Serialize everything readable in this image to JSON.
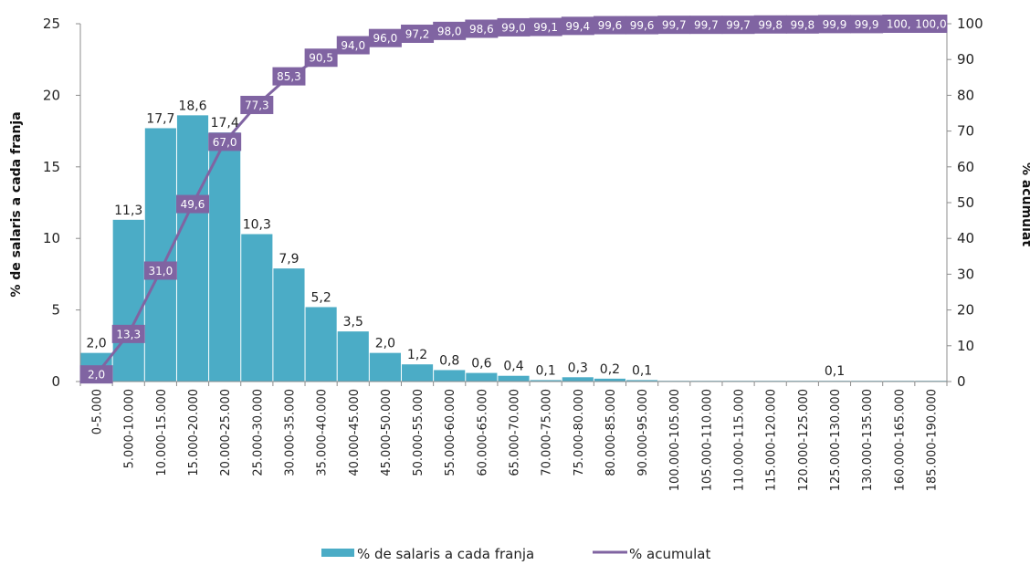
{
  "chart_data": {
    "type": "bar",
    "categories": [
      "0-5.000",
      "5.000-10.000",
      "10.000-15.000",
      "15.000-20.000",
      "20.000-25.000",
      "25.000-30.000",
      "30.000-35.000",
      "35.000-40.000",
      "40.000-45.000",
      "45.000-50.000",
      "50.000-55.000",
      "55.000-60.000",
      "60.000-65.000",
      "65.000-70.000",
      "70.000-75.000",
      "75.000-80.000",
      "80.000-85.000",
      "90.000-95.000",
      "100.000-105.000",
      "105.000-110.000",
      "110.000-115.000",
      "115.000-120.000",
      "120.000-125.000",
      "125.000-130.000",
      "130.000-135.000",
      "160.000-165.000",
      "185.000-190.000"
    ],
    "series": [
      {
        "name": "% de salaris a cada franja",
        "type": "bar",
        "axis": "left",
        "color": "#4bacc6",
        "values": [
          2.0,
          11.3,
          17.7,
          18.6,
          17.4,
          10.3,
          7.9,
          5.2,
          3.5,
          2.0,
          1.2,
          0.8,
          0.6,
          0.4,
          0.1,
          0.3,
          0.2,
          0.1,
          0.05,
          0.05,
          0.05,
          0.05,
          0.05,
          0.05,
          0.05,
          0.05,
          0.05
        ],
        "labels": [
          "2,0",
          "11,3",
          "17,7",
          "18,6",
          "17,4",
          "10,3",
          "7,9",
          "5,2",
          "3,5",
          "2,0",
          "1,2",
          "0,8",
          "0,6",
          "0,4",
          "0,1",
          "0,3",
          "0,2",
          "0,1",
          "",
          "",
          "",
          "",
          "",
          "0,1",
          "",
          "",
          ""
        ]
      },
      {
        "name": "% acumulat",
        "type": "line",
        "axis": "right",
        "color": "#8064a2",
        "values": [
          2.0,
          13.3,
          31.0,
          49.6,
          67.0,
          77.3,
          85.3,
          90.5,
          94.0,
          96.0,
          97.2,
          98.0,
          98.6,
          99.0,
          99.1,
          99.4,
          99.6,
          99.6,
          99.7,
          99.7,
          99.7,
          99.8,
          99.8,
          99.9,
          99.9,
          100.0,
          100.0
        ],
        "labels": [
          "2,0",
          "13,3",
          "31,0",
          "49,6",
          "67,0",
          "77,3",
          "85,3",
          "90,5",
          "94,0",
          "96,0",
          "97,2",
          "98,0",
          "98,6",
          "99,0",
          "99,1",
          "99,4",
          "99,6",
          "99,6",
          "99,7",
          "99,7",
          "99,7",
          "99,8",
          "99,8",
          "99,9",
          "99,9",
          "100,",
          "100,0"
        ]
      }
    ],
    "ylabel": "% de salaris a cada franja",
    "y2label": "% acumulat",
    "ylim": [
      0,
      25
    ],
    "yticks": [
      0,
      5,
      10,
      15,
      20,
      25
    ],
    "y2lim": [
      0,
      100
    ],
    "y2ticks": [
      0,
      10,
      20,
      30,
      40,
      50,
      60,
      70,
      80,
      90,
      100
    ],
    "grid": false,
    "legend_position": "bottom"
  }
}
